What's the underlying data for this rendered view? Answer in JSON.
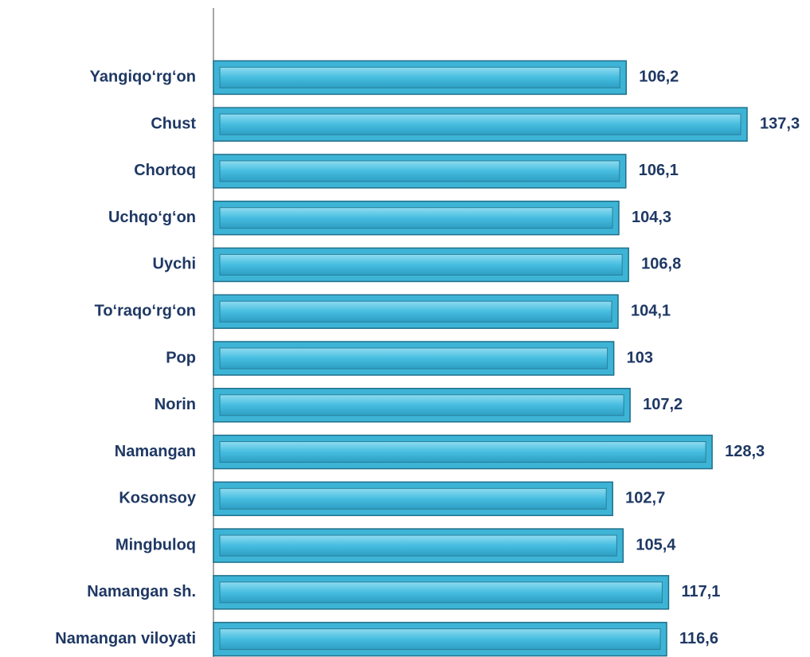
{
  "chart_data": {
    "type": "bar",
    "orientation": "horizontal",
    "categories": [
      "Yangiqo‘rg‘on",
      "Chust",
      "Chortoq",
      "Uchqo‘g‘on",
      "Uychi",
      "To‘raqo‘rg‘on",
      "Pop",
      "Norin",
      "Namangan",
      "Kosonsoy",
      "Mingbuloq",
      "Namangan sh.",
      "Namangan viloyati"
    ],
    "values": [
      106.2,
      137.3,
      106.1,
      104.3,
      106.8,
      104.1,
      103,
      107.2,
      128.3,
      102.7,
      105.4,
      117.1,
      116.6
    ],
    "value_labels": [
      "106,2",
      "137,3",
      "106,1",
      "104,3",
      "106,8",
      "104,1",
      "103",
      "107,2",
      "128,3",
      "102,7",
      "105,4",
      "117,1",
      "116,6"
    ],
    "color": "#3db4d6",
    "xlim": [
      0,
      150
    ]
  }
}
